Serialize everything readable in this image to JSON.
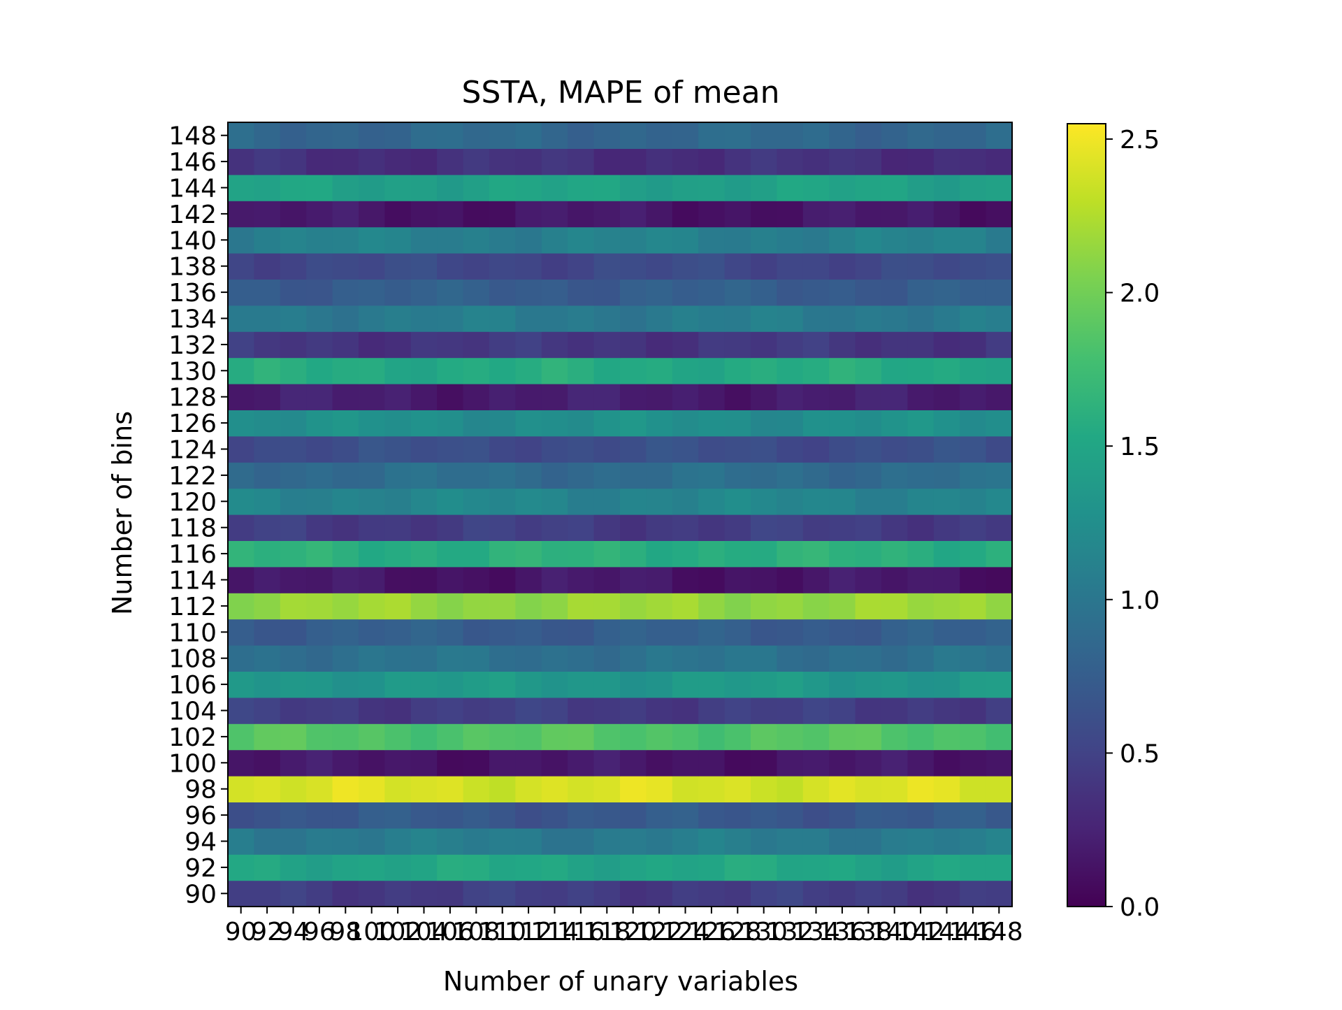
{
  "chart_data": {
    "type": "heatmap",
    "title": "SSTA, MAPE of mean",
    "xlabel": "Number of unary variables",
    "ylabel": "Number of bins",
    "colormap": "viridis",
    "x": [
      90,
      92,
      94,
      96,
      98,
      100,
      102,
      104,
      106,
      108,
      110,
      112,
      114,
      116,
      118,
      120,
      122,
      124,
      126,
      128,
      130,
      132,
      134,
      136,
      138,
      140,
      142,
      144,
      146,
      148
    ],
    "y": [
      90,
      92,
      94,
      96,
      98,
      100,
      102,
      104,
      106,
      108,
      110,
      112,
      114,
      116,
      118,
      120,
      122,
      124,
      126,
      128,
      130,
      132,
      134,
      136,
      138,
      140,
      142,
      144,
      146,
      148
    ],
    "row_base": {
      "90": 0.45,
      "92": 1.5,
      "94": 1.05,
      "96": 0.7,
      "98": 2.4,
      "100": 0.15,
      "102": 1.85,
      "104": 0.45,
      "106": 1.35,
      "108": 0.95,
      "110": 0.75,
      "112": 2.15,
      "114": 0.15,
      "116": 1.6,
      "118": 0.45,
      "120": 1.15,
      "122": 0.9,
      "124": 0.6,
      "126": 1.25,
      "128": 0.2,
      "130": 1.55,
      "132": 0.4,
      "134": 1.05,
      "136": 0.75,
      "138": 0.55,
      "140": 1.1,
      "142": 0.15,
      "144": 1.45,
      "146": 0.35,
      "148": 0.85
    },
    "colorbar": {
      "min": 0.0,
      "max": 2.55,
      "ticks": [
        "0.0",
        "0.5",
        "1.0",
        "1.5",
        "2.0",
        "2.5"
      ]
    }
  }
}
